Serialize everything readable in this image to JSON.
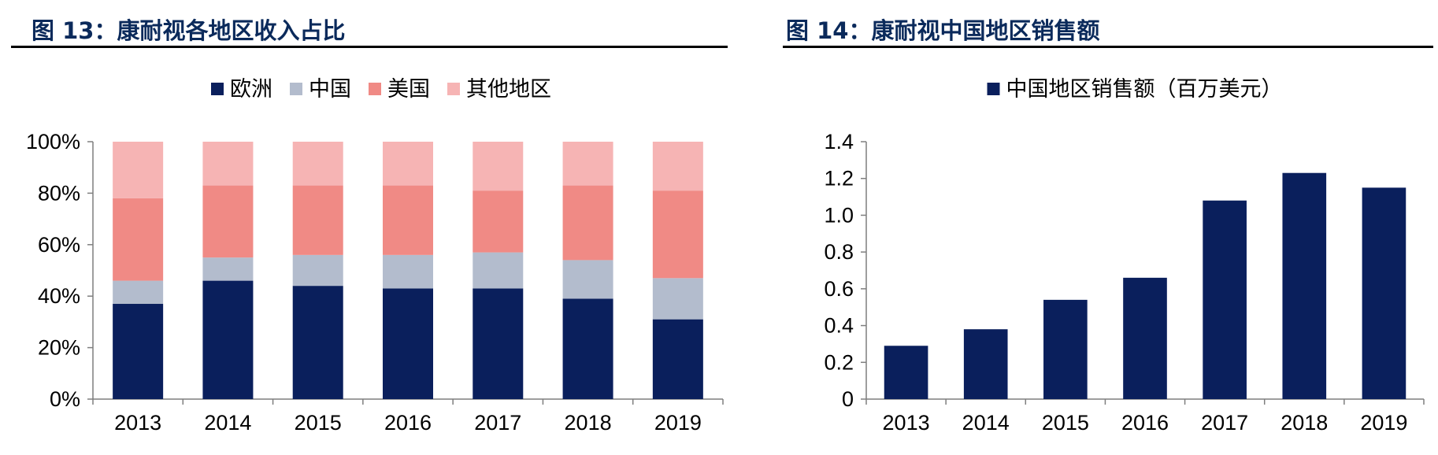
{
  "figures": {
    "left_title": "图 13：康耐视各地区收入占比",
    "right_title": "图 14：康耐视中国地区销售额"
  },
  "chart_data": [
    {
      "type": "bar",
      "stacked": true,
      "categories": [
        "2013",
        "2014",
        "2015",
        "2016",
        "2017",
        "2018",
        "2019"
      ],
      "series": [
        {
          "name": "欧洲",
          "color": "#0a1f5c",
          "values": [
            37,
            46,
            44,
            43,
            43,
            39,
            31
          ]
        },
        {
          "name": "中国",
          "color": "#b3bccd",
          "values": [
            9,
            9,
            12,
            13,
            14,
            15,
            16
          ]
        },
        {
          "name": "美国",
          "color": "#f08a85",
          "values": [
            32,
            28,
            27,
            27,
            24,
            29,
            34
          ]
        },
        {
          "name": "其他地区",
          "color": "#f6b4b4",
          "values": [
            22,
            17,
            17,
            17,
            19,
            17,
            19
          ]
        }
      ],
      "ylim": [
        0,
        100
      ],
      "yticks": [
        "0%",
        "20%",
        "40%",
        "60%",
        "80%",
        "100%"
      ],
      "legend_position": "top"
    },
    {
      "type": "bar",
      "categories": [
        "2013",
        "2014",
        "2015",
        "2016",
        "2017",
        "2018",
        "2019"
      ],
      "series": [
        {
          "name": "中国地区销售额（百万美元）",
          "color": "#0a1f5c",
          "values": [
            0.29,
            0.38,
            0.54,
            0.66,
            1.08,
            1.23,
            1.15
          ]
        }
      ],
      "ylim": [
        0,
        1.4
      ],
      "yticks": [
        "0",
        "0.2",
        "0.4",
        "0.6",
        "0.8",
        "1.0",
        "1.2",
        "1.4"
      ],
      "legend_position": "top"
    }
  ]
}
